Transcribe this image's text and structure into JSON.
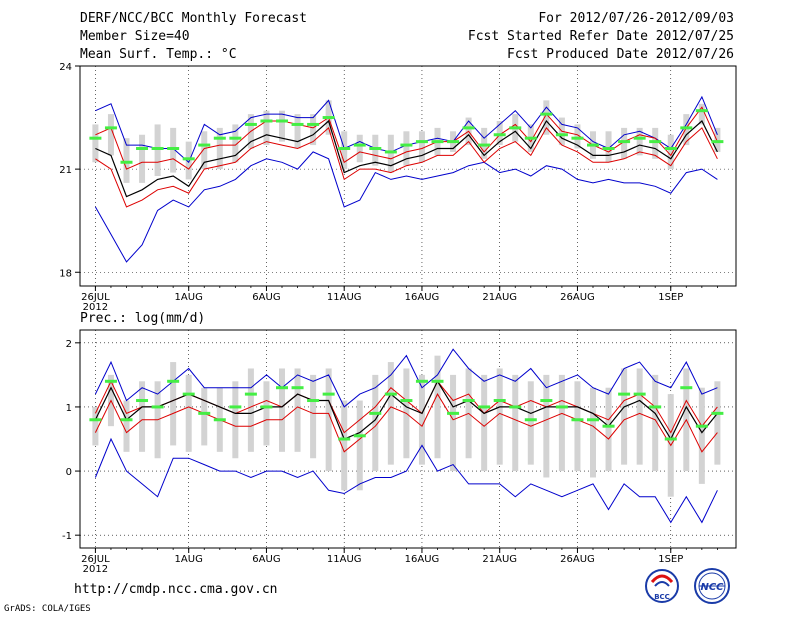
{
  "header": {
    "left": [
      "DERF/NCC/BCC Monthly Forecast",
      "Member Size=40",
      "Mean Surf. Temp.: °C"
    ],
    "right": [
      "For 2012/07/26-2012/09/03",
      "Fcst Started Refer Date 2012/07/25",
      "Fcst Produced Date 2012/07/26"
    ]
  },
  "footer": {
    "url": "http://cmdp.ncc.cma.gov.cn",
    "credit": "GrADS: COLA/IGES",
    "logo_left_text": "BCC",
    "logo_right_text": "NCC"
  },
  "colors": {
    "mean": "#000000",
    "outer_band": "#0000cc",
    "inner_band": "#dd0000",
    "box": "#d3d3d3",
    "median": "#44ee44",
    "grid": "#000000"
  },
  "chart_data": [
    {
      "type": "line",
      "title": "Mean Surf. Temp.: °C",
      "ylim": [
        17.6,
        24
      ],
      "yticks": [
        18,
        21,
        24
      ],
      "x_tick_labels": [
        "26JUL",
        "1AUG",
        "6AUG",
        "11AUG",
        "16AUG",
        "21AUG",
        "26AUG",
        "1SEP"
      ],
      "x_tick_days": [
        0,
        6,
        11,
        16,
        21,
        26,
        31,
        37
      ],
      "year_label": "2012",
      "days": 40,
      "series": [
        {
          "name": "max",
          "values": [
            22.7,
            22.9,
            21.7,
            21.7,
            21.6,
            21.6,
            21.2,
            22.3,
            22.0,
            22.1,
            22.5,
            22.6,
            22.6,
            22.5,
            22.5,
            23.0,
            21.6,
            21.8,
            21.6,
            21.5,
            21.7,
            21.8,
            21.9,
            21.8,
            22.4,
            21.9,
            22.3,
            22.7,
            22.2,
            22.8,
            22.3,
            22.2,
            21.8,
            21.6,
            22.0,
            22.1,
            21.9,
            21.6,
            22.3,
            23.1,
            22.0
          ]
        },
        {
          "name": "upper",
          "values": [
            22.0,
            22.2,
            21.0,
            21.2,
            21.2,
            21.3,
            21.0,
            21.6,
            21.7,
            21.7,
            22.1,
            22.4,
            22.4,
            22.3,
            22.2,
            22.5,
            21.2,
            21.5,
            21.4,
            21.3,
            21.5,
            21.6,
            21.8,
            21.8,
            22.1,
            21.5,
            22.0,
            22.3,
            21.8,
            22.6,
            22.1,
            22.0,
            21.7,
            21.5,
            21.8,
            22.0,
            21.9,
            21.4,
            22.2,
            22.8,
            21.8
          ]
        },
        {
          "name": "mean",
          "values": [
            21.6,
            21.4,
            20.2,
            20.4,
            20.7,
            20.8,
            20.5,
            21.2,
            21.3,
            21.4,
            21.8,
            22.0,
            21.9,
            21.8,
            22.0,
            22.4,
            20.9,
            21.1,
            21.2,
            21.1,
            21.3,
            21.4,
            21.6,
            21.6,
            22.0,
            21.4,
            21.8,
            22.1,
            21.6,
            22.4,
            21.9,
            21.7,
            21.4,
            21.4,
            21.5,
            21.7,
            21.6,
            21.3,
            22.0,
            22.4,
            21.5
          ]
        },
        {
          "name": "lower",
          "values": [
            21.3,
            21.0,
            19.9,
            20.1,
            20.4,
            20.5,
            20.3,
            21.0,
            21.1,
            21.2,
            21.6,
            21.8,
            21.7,
            21.6,
            21.8,
            22.2,
            20.7,
            21.0,
            21.0,
            20.9,
            21.1,
            21.2,
            21.4,
            21.4,
            21.8,
            21.2,
            21.6,
            21.8,
            21.4,
            22.2,
            21.7,
            21.5,
            21.2,
            21.2,
            21.3,
            21.5,
            21.4,
            21.1,
            21.8,
            22.2,
            21.3
          ]
        },
        {
          "name": "min",
          "values": [
            19.9,
            19.1,
            18.3,
            18.8,
            19.8,
            20.1,
            19.9,
            20.4,
            20.5,
            20.7,
            21.1,
            21.3,
            21.2,
            21.0,
            21.5,
            21.3,
            19.9,
            20.1,
            20.9,
            20.7,
            20.8,
            20.7,
            20.8,
            20.9,
            21.1,
            21.2,
            20.9,
            21.0,
            20.8,
            21.1,
            21.0,
            20.7,
            20.6,
            20.7,
            20.6,
            20.6,
            20.5,
            20.3,
            20.9,
            21.0,
            20.7
          ]
        },
        {
          "name": "median",
          "values": [
            21.9,
            22.2,
            21.2,
            21.6,
            21.6,
            21.6,
            21.3,
            21.7,
            21.9,
            21.9,
            22.3,
            22.4,
            22.4,
            22.3,
            22.3,
            22.5,
            21.6,
            21.7,
            21.6,
            21.5,
            21.7,
            21.8,
            21.8,
            21.8,
            22.2,
            21.7,
            22.0,
            22.2,
            21.9,
            22.6,
            22.0,
            21.9,
            21.7,
            21.6,
            21.8,
            21.9,
            21.8,
            21.6,
            22.2,
            22.7,
            21.8
          ]
        },
        {
          "name": "box_high",
          "values": [
            22.3,
            22.6,
            21.9,
            22.0,
            22.3,
            22.2,
            21.8,
            22.1,
            22.2,
            22.3,
            22.6,
            22.7,
            22.7,
            22.6,
            22.6,
            23.0,
            22.1,
            22.0,
            22.0,
            22.0,
            22.1,
            22.1,
            22.2,
            22.1,
            22.5,
            22.2,
            22.4,
            22.6,
            22.3,
            23.0,
            22.5,
            22.3,
            22.1,
            22.1,
            22.2,
            22.2,
            22.2,
            22.0,
            22.6,
            22.9,
            22.2
          ]
        },
        {
          "name": "box_low",
          "values": [
            21.2,
            21.4,
            20.6,
            20.6,
            20.8,
            20.9,
            20.7,
            21.0,
            21.0,
            21.2,
            21.6,
            21.7,
            21.8,
            21.6,
            21.7,
            22.0,
            21.0,
            21.2,
            21.1,
            20.9,
            21.1,
            21.2,
            21.4,
            21.5,
            21.7,
            21.3,
            21.7,
            21.8,
            21.5,
            22.0,
            21.7,
            21.6,
            21.3,
            21.2,
            21.3,
            21.4,
            21.3,
            21.0,
            21.7,
            22.3,
            21.5
          ]
        }
      ]
    },
    {
      "type": "line",
      "title": "Prec.: log(mm/d)",
      "ylim": [
        -1.2,
        2.2
      ],
      "yticks": [
        -1,
        0,
        1,
        2
      ],
      "x_tick_labels": [
        "26JUL",
        "1AUG",
        "6AUG",
        "11AUG",
        "16AUG",
        "21AUG",
        "26AUG",
        "1SEP"
      ],
      "x_tick_days": [
        0,
        6,
        11,
        16,
        21,
        26,
        31,
        37
      ],
      "year_label": "2012",
      "days": 40,
      "series": [
        {
          "name": "max",
          "values": [
            1.2,
            1.7,
            1.1,
            1.3,
            1.2,
            1.4,
            1.6,
            1.3,
            1.3,
            1.3,
            1.3,
            1.5,
            1.3,
            1.5,
            1.4,
            1.5,
            1.0,
            1.2,
            1.3,
            1.5,
            1.8,
            1.3,
            1.5,
            1.9,
            1.6,
            1.4,
            1.5,
            1.4,
            1.6,
            1.3,
            1.4,
            1.5,
            1.3,
            1.2,
            1.6,
            1.7,
            1.4,
            1.3,
            1.7,
            1.2,
            1.3
          ]
        },
        {
          "name": "upper",
          "values": [
            0.9,
            1.4,
            0.9,
            1.0,
            1.0,
            1.1,
            1.2,
            1.1,
            1.0,
            0.9,
            1.0,
            1.1,
            1.0,
            1.2,
            1.1,
            1.1,
            0.6,
            0.8,
            1.0,
            1.3,
            1.1,
            0.9,
            1.4,
            1.1,
            1.2,
            0.9,
            1.1,
            1.0,
            1.1,
            1.0,
            1.1,
            1.0,
            0.9,
            0.8,
            1.1,
            1.2,
            1.0,
            0.6,
            1.1,
            0.7,
            1.0
          ]
        },
        {
          "name": "mean",
          "values": [
            0.8,
            1.3,
            0.8,
            1.0,
            1.0,
            1.1,
            1.2,
            1.1,
            1.0,
            0.9,
            0.9,
            1.0,
            1.0,
            1.2,
            1.1,
            1.1,
            0.5,
            0.6,
            0.8,
            1.2,
            1.0,
            0.9,
            1.4,
            1.0,
            1.1,
            0.9,
            1.0,
            1.0,
            0.9,
            1.0,
            1.0,
            1.0,
            0.9,
            0.7,
            1.0,
            1.1,
            0.9,
            0.5,
            1.0,
            0.6,
            0.9
          ]
        },
        {
          "name": "lower",
          "values": [
            0.6,
            1.1,
            0.6,
            0.8,
            0.8,
            0.9,
            1.0,
            0.9,
            0.8,
            0.7,
            0.7,
            0.8,
            0.8,
            1.0,
            0.9,
            0.9,
            0.3,
            0.5,
            0.7,
            1.0,
            0.9,
            0.7,
            1.2,
            0.8,
            0.9,
            0.7,
            0.9,
            0.8,
            0.7,
            0.8,
            0.9,
            0.8,
            0.7,
            0.5,
            0.8,
            0.9,
            0.8,
            0.4,
            0.8,
            0.3,
            0.6
          ]
        },
        {
          "name": "min",
          "values": [
            -0.1,
            0.5,
            0.0,
            -0.2,
            -0.4,
            0.2,
            0.2,
            0.1,
            0.0,
            0.0,
            -0.1,
            0.0,
            0.0,
            -0.1,
            0.0,
            -0.3,
            -0.35,
            -0.2,
            -0.1,
            -0.1,
            0.0,
            0.4,
            0.0,
            0.1,
            -0.2,
            -0.2,
            -0.2,
            -0.4,
            -0.2,
            -0.3,
            -0.4,
            -0.3,
            -0.2,
            -0.6,
            -0.2,
            -0.4,
            -0.4,
            -0.8,
            -0.4,
            -0.8,
            -0.3
          ]
        },
        {
          "name": "median",
          "values": [
            0.8,
            1.4,
            0.8,
            1.1,
            1.0,
            1.4,
            1.2,
            0.9,
            0.8,
            1.0,
            1.2,
            1.0,
            1.3,
            1.3,
            1.1,
            1.2,
            0.5,
            0.55,
            0.9,
            1.2,
            1.1,
            1.4,
            1.4,
            0.9,
            1.1,
            1.0,
            1.1,
            1.0,
            0.8,
            1.1,
            1.0,
            0.8,
            0.8,
            0.7,
            1.2,
            1.2,
            1.0,
            0.5,
            1.3,
            0.7,
            0.9
          ]
        },
        {
          "name": "box_high",
          "values": [
            1.0,
            1.5,
            1.1,
            1.4,
            1.4,
            1.7,
            1.5,
            1.3,
            1.3,
            1.4,
            1.6,
            1.4,
            1.6,
            1.6,
            1.5,
            1.6,
            1.1,
            1.1,
            1.5,
            1.7,
            1.6,
            1.5,
            1.8,
            1.5,
            1.6,
            1.5,
            1.6,
            1.5,
            1.4,
            1.5,
            1.5,
            1.4,
            1.3,
            1.3,
            1.6,
            1.6,
            1.5,
            1.2,
            1.6,
            1.3,
            1.4
          ]
        },
        {
          "name": "box_low",
          "values": [
            0.4,
            0.7,
            0.3,
            0.3,
            0.2,
            0.4,
            0.3,
            0.4,
            0.3,
            0.2,
            0.3,
            0.4,
            0.3,
            0.3,
            0.2,
            0.0,
            -0.3,
            -0.3,
            0.0,
            0.1,
            0.2,
            0.1,
            0.2,
            0.0,
            0.2,
            0.0,
            0.1,
            0.0,
            0.1,
            -0.1,
            0.0,
            0.0,
            -0.1,
            0.0,
            0.1,
            0.1,
            0.0,
            -0.4,
            0.0,
            -0.2,
            0.1
          ]
        }
      ]
    }
  ]
}
